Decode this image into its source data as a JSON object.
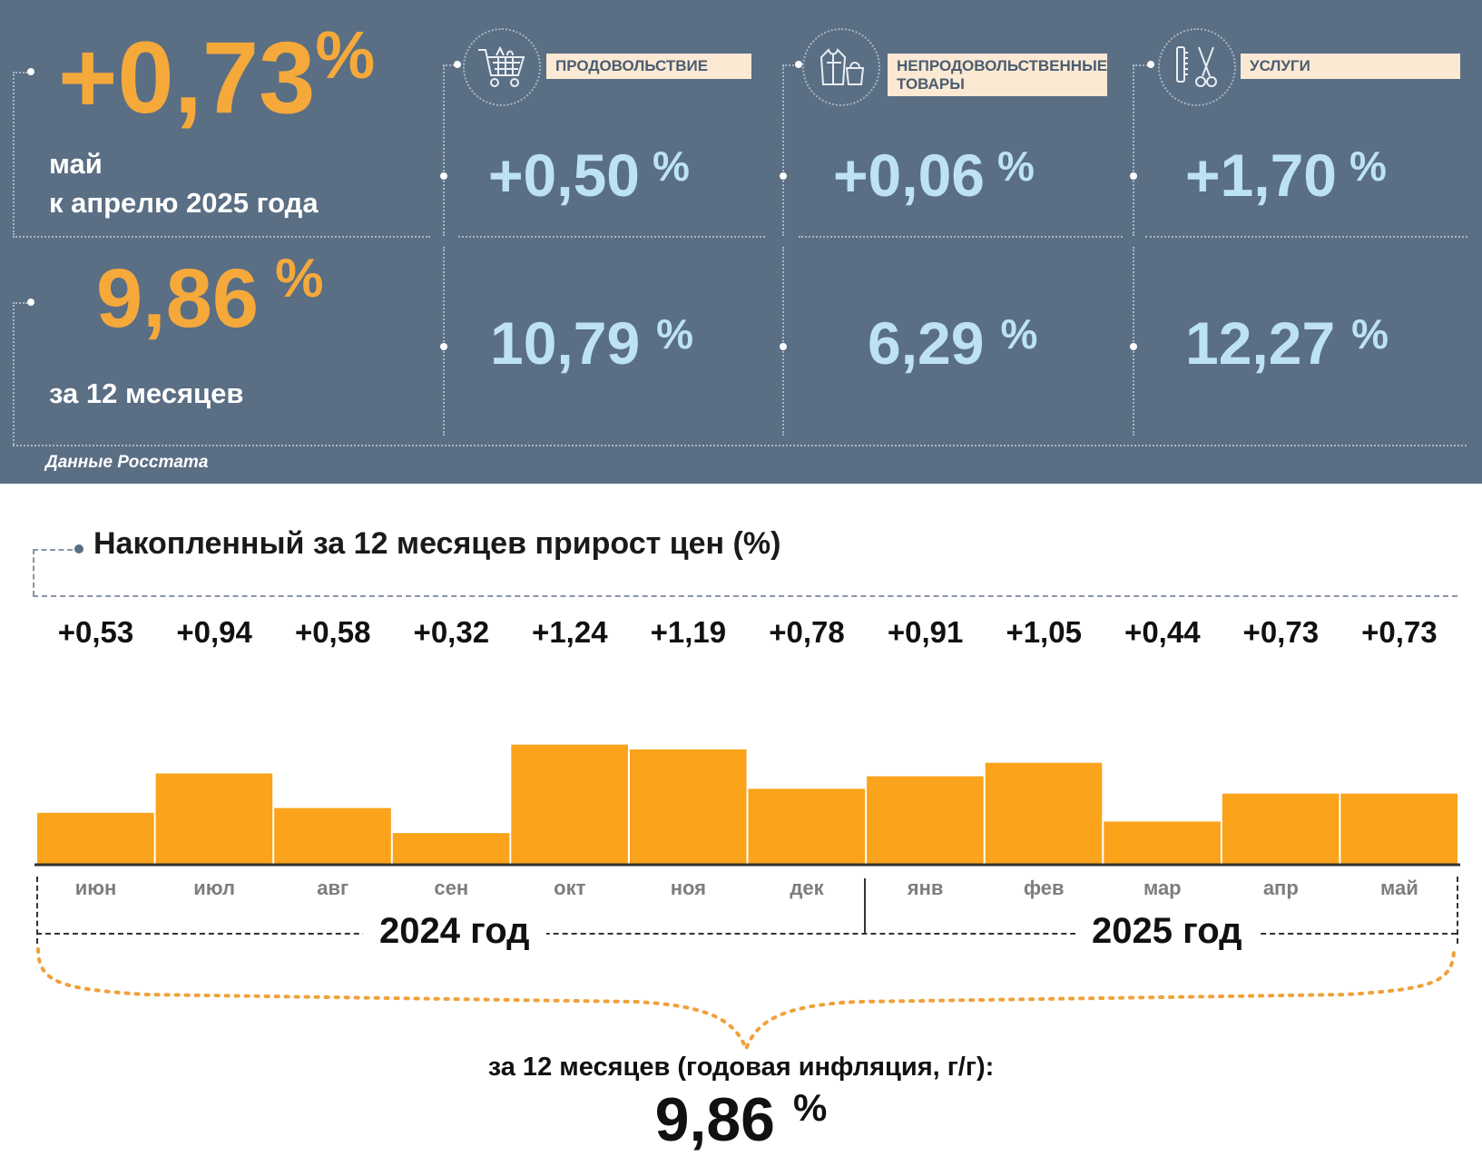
{
  "summary": {
    "monthly": {
      "value": "+0,73",
      "unit": "%",
      "line1": "май",
      "line2": "к апрелю 2025 года"
    },
    "annual": {
      "value": "9,86",
      "unit": "%",
      "label": "за 12 месяцев"
    },
    "source": "Данные Росстата"
  },
  "categories": [
    {
      "label": "ПРОДОВОЛЬСТВИЕ",
      "icon": "shopping-cart-icon",
      "monthly": "+0,50",
      "annual": "10,79",
      "unit": "%"
    },
    {
      "label": "НЕПРОДОВОЛЬСТВЕННЫЕ ТОВАРЫ",
      "icon": "clothing-icon",
      "monthly": "+0,06",
      "annual": "6,29",
      "unit": "%"
    },
    {
      "label": "УСЛУГИ",
      "icon": "scissors-comb-icon",
      "monthly": "+1,70",
      "annual": "12,27",
      "unit": "%"
    }
  ],
  "colors": {
    "panel": "#5a6e84",
    "accent": "#f5a93b",
    "bar": "#faa31b",
    "light_blue": "#bde3f3",
    "label_bg": "#fbe9d4"
  },
  "chart_data": {
    "type": "bar",
    "title": "Накопленный за 12 месяцев прирост цен (%)",
    "categories": [
      "июн",
      "июл",
      "авг",
      "сен",
      "окт",
      "ноя",
      "дек",
      "янв",
      "фев",
      "мар",
      "апр",
      "май"
    ],
    "values": [
      0.53,
      0.94,
      0.58,
      0.32,
      1.24,
      1.19,
      0.78,
      0.91,
      1.05,
      0.44,
      0.73,
      0.73
    ],
    "value_labels": [
      "+0,53",
      "+0,94",
      "+0,58",
      "+0,32",
      "+1,24",
      "+1,19",
      "+0,78",
      "+0,91",
      "+1,05",
      "+0,44",
      "+0,73",
      "+0,73"
    ],
    "year_groups": [
      "2024 год",
      "2025 год"
    ],
    "caption": "за 12 месяцев (годовая инфляция, г/г):",
    "total": "9,86",
    "total_unit": "%",
    "grid": false,
    "legend": "none"
  }
}
